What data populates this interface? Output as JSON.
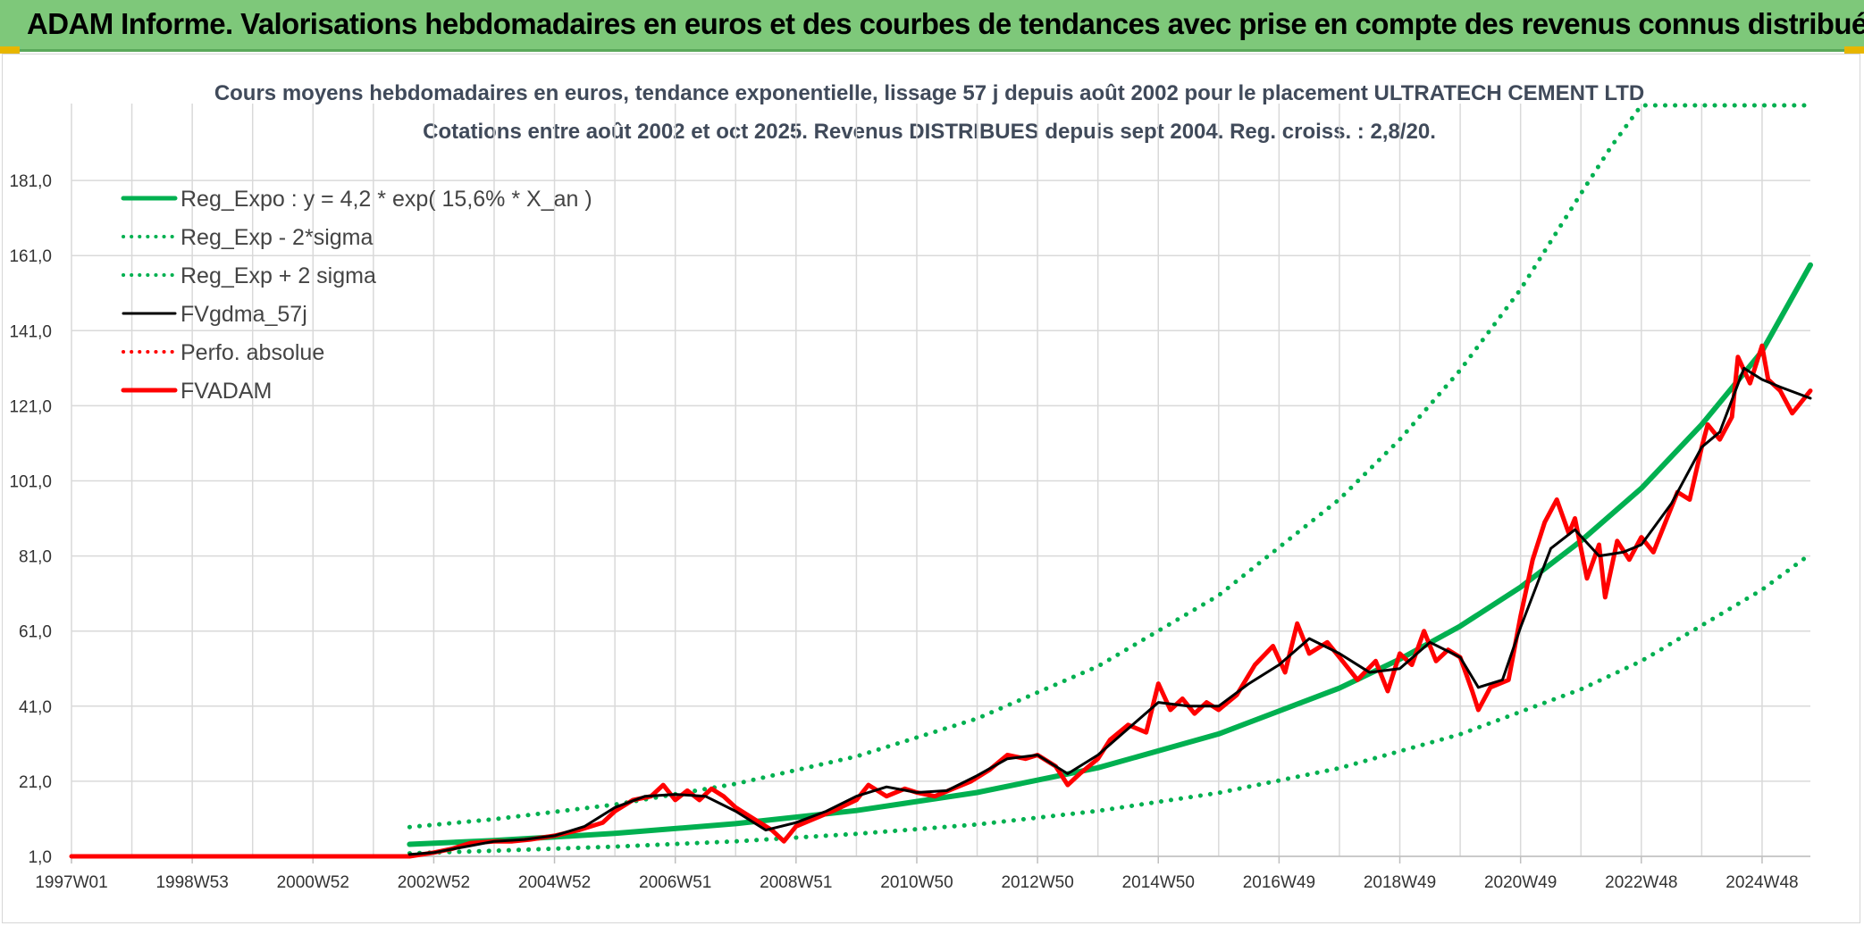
{
  "header": {
    "title": "ADAM Informe. Valorisations hebdomadaires en euros et des courbes de tendances avec prise en compte des revenus connus distribués"
  },
  "chart_data": {
    "type": "line",
    "title": "Cours moyens hebdomadaires en euros, tendance exponentielle, lissage 57 j depuis août 2002 pour le placement ULTRATECH CEMENT LTD",
    "subtitle": "Cotations entre août 2002 et oct 2025. Revenus DISTRIBUES depuis sept 2004. Reg. croiss. : 2,8/20.",
    "xlabel": "",
    "ylabel": "",
    "ylim": [
      1,
      201
    ],
    "x_range": [
      1997.0,
      2025.8
    ],
    "y_ticks": [
      "1,0",
      "21,0",
      "41,0",
      "61,0",
      "81,0",
      "101,0",
      "121,0",
      "141,0",
      "161,0",
      "181,0"
    ],
    "x_ticks": [
      {
        "label": "1997W01",
        "x": 1997.0
      },
      {
        "label": "1998W53",
        "x": 1999.0
      },
      {
        "label": "2000W52",
        "x": 2001.0
      },
      {
        "label": "2002W52",
        "x": 2003.0
      },
      {
        "label": "2004W52",
        "x": 2005.0
      },
      {
        "label": "2006W51",
        "x": 2007.0
      },
      {
        "label": "2008W51",
        "x": 2009.0
      },
      {
        "label": "2010W50",
        "x": 2011.0
      },
      {
        "label": "2012W50",
        "x": 2013.0
      },
      {
        "label": "2014W50",
        "x": 2015.0
      },
      {
        "label": "2016W49",
        "x": 2017.0
      },
      {
        "label": "2018W49",
        "x": 2019.0
      },
      {
        "label": "2020W49",
        "x": 2021.0
      },
      {
        "label": "2022W48",
        "x": 2023.0
      },
      {
        "label": "2024W48",
        "x": 2025.0
      }
    ],
    "grid": true,
    "legend_position": "top-left",
    "series": [
      {
        "name": "Reg_Expo : y = 4,2 * exp( 15,6% *  X_an )",
        "color": "#00b050",
        "style": "solid",
        "width": 6,
        "x": [
          2002.6,
          2004.0,
          2006.0,
          2008.0,
          2010.0,
          2012.0,
          2014.0,
          2016.0,
          2018.0,
          2019.0,
          2020.0,
          2021.0,
          2022.0,
          2023.0,
          2024.0,
          2025.0,
          2025.8
        ],
        "y": [
          4.2,
          5.2,
          7.1,
          9.7,
          13.2,
          18.0,
          24.6,
          33.6,
          45.8,
          53.5,
          62.3,
          72.7,
          85.0,
          99.0,
          116.0,
          135.5,
          158.5
        ]
      },
      {
        "name": "Reg_Exp - 2*sigma",
        "color": "#00b050",
        "style": "dotted",
        "width": 5,
        "x": [
          2002.6,
          2004.0,
          2006.0,
          2008.0,
          2010.0,
          2012.0,
          2014.0,
          2016.0,
          2018.0,
          2020.0,
          2021.0,
          2022.0,
          2023.0,
          2024.0,
          2025.0,
          2025.8
        ],
        "y": [
          1.8,
          2.5,
          3.6,
          5.0,
          7.0,
          9.5,
          13.1,
          17.9,
          24.5,
          33.5,
          39.5,
          45.5,
          53.0,
          62.5,
          72.0,
          81.5
        ]
      },
      {
        "name": "Reg_Exp + 2 sigma",
        "color": "#00b050",
        "style": "dotted",
        "width": 5,
        "x": [
          2002.6,
          2004.0,
          2006.0,
          2008.0,
          2010.0,
          2012.0,
          2014.0,
          2016.0,
          2018.0,
          2019.0,
          2020.0,
          2021.0,
          2022.0,
          2022.5,
          2023.0,
          2025.8
        ],
        "y": [
          8.8,
          10.9,
          14.8,
          20.3,
          27.6,
          37.7,
          51.6,
          70.5,
          96.1,
          112.0,
          130.5,
          152.0,
          177.5,
          190.0,
          201.0,
          201.0
        ]
      },
      {
        "name": "FVgdma_57j",
        "color": "#000000",
        "style": "solid",
        "width": 3,
        "x": [
          2002.6,
          2003.0,
          2003.5,
          2004.0,
          2004.5,
          2005.0,
          2005.5,
          2006.0,
          2006.5,
          2007.0,
          2007.5,
          2008.0,
          2008.5,
          2009.0,
          2009.5,
          2010.0,
          2010.5,
          2011.0,
          2011.5,
          2012.0,
          2012.5,
          2013.0,
          2013.5,
          2014.0,
          2014.5,
          2015.0,
          2015.5,
          2016.0,
          2016.5,
          2017.0,
          2017.5,
          2018.0,
          2018.5,
          2019.0,
          2019.5,
          2020.0,
          2020.3,
          2020.7,
          2021.0,
          2021.5,
          2021.9,
          2022.3,
          2022.7,
          2023.0,
          2023.5,
          2024.0,
          2024.3,
          2024.7,
          2025.0,
          2025.3,
          2025.8
        ],
        "y": [
          1.5,
          2.0,
          3.5,
          5.0,
          5.5,
          6.5,
          9.0,
          14.0,
          17.0,
          17.5,
          17.0,
          13.0,
          8.0,
          10.0,
          13.0,
          17.0,
          19.5,
          18.0,
          18.5,
          22.5,
          27.0,
          28.0,
          23.0,
          28.0,
          35.0,
          42.0,
          41.0,
          41.0,
          47.0,
          52.0,
          59.0,
          55.0,
          50.0,
          51.0,
          58.0,
          54.0,
          46.0,
          48.0,
          62.0,
          83.0,
          88.0,
          81.0,
          82.0,
          84.0,
          95.0,
          110.0,
          114.0,
          131.0,
          128.0,
          126.0,
          123.0
        ]
      },
      {
        "name": "Perfo. absolue",
        "color": "#ff0000",
        "style": "dotted",
        "width": 3,
        "x": [
          1997.0,
          2002.6
        ],
        "y": [
          1.0,
          1.0
        ]
      },
      {
        "name": "FVADAM",
        "color": "#ff0000",
        "style": "solid",
        "width": 5,
        "x": [
          1997.0,
          2002.6,
          2002.8,
          2003.0,
          2003.3,
          2003.6,
          2004.0,
          2004.3,
          2004.6,
          2005.0,
          2005.4,
          2005.8,
          2006.0,
          2006.3,
          2006.6,
          2006.8,
          2007.0,
          2007.2,
          2007.4,
          2007.6,
          2007.8,
          2008.0,
          2008.3,
          2008.6,
          2008.8,
          2009.0,
          2009.3,
          2009.6,
          2010.0,
          2010.2,
          2010.5,
          2010.8,
          2011.0,
          2011.3,
          2011.6,
          2011.9,
          2012.2,
          2012.5,
          2012.8,
          2013.0,
          2013.3,
          2013.5,
          2013.7,
          2014.0,
          2014.2,
          2014.5,
          2014.8,
          2015.0,
          2015.2,
          2015.4,
          2015.6,
          2015.8,
          2016.0,
          2016.3,
          2016.6,
          2016.9,
          2017.1,
          2017.3,
          2017.5,
          2017.8,
          2018.0,
          2018.3,
          2018.6,
          2018.8,
          2019.0,
          2019.2,
          2019.4,
          2019.6,
          2019.8,
          2020.0,
          2020.2,
          2020.3,
          2020.5,
          2020.8,
          2021.0,
          2021.2,
          2021.4,
          2021.6,
          2021.8,
          2021.9,
          2022.1,
          2022.3,
          2022.4,
          2022.6,
          2022.8,
          2023.0,
          2023.2,
          2023.4,
          2023.6,
          2023.8,
          2024.0,
          2024.1,
          2024.3,
          2024.5,
          2024.6,
          2024.8,
          2025.0,
          2025.1,
          2025.3,
          2025.5,
          2025.8
        ],
        "y": [
          1.0,
          1.0,
          1.5,
          2.0,
          3.0,
          4.5,
          5.0,
          5.0,
          5.5,
          6.5,
          8.0,
          10.0,
          13.0,
          16.0,
          17.0,
          20.0,
          16.0,
          18.5,
          16.0,
          19.0,
          17.0,
          14.0,
          11.0,
          8.0,
          5.0,
          9.0,
          11.0,
          13.0,
          16.0,
          20.0,
          17.0,
          19.0,
          18.0,
          17.0,
          19.0,
          21.0,
          24.0,
          28.0,
          27.0,
          28.0,
          25.0,
          20.0,
          23.0,
          27.0,
          32.0,
          36.0,
          34.0,
          47.0,
          40.0,
          43.0,
          39.0,
          42.0,
          40.0,
          44.0,
          52.0,
          57.0,
          50.0,
          63.0,
          55.0,
          58.0,
          54.0,
          48.0,
          53.0,
          45.0,
          55.0,
          52.0,
          61.0,
          53.0,
          56.0,
          54.0,
          45.0,
          40.0,
          46.0,
          48.0,
          65.0,
          80.0,
          90.0,
          96.0,
          87.0,
          91.0,
          75.0,
          84.0,
          70.0,
          85.0,
          80.0,
          86.0,
          82.0,
          90.0,
          98.0,
          96.0,
          110.0,
          116.0,
          112.0,
          118.0,
          134.0,
          127.0,
          137.0,
          128.0,
          125.0,
          119.0,
          125.0
        ]
      }
    ]
  }
}
